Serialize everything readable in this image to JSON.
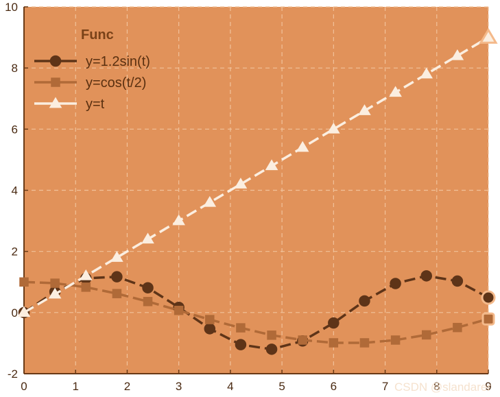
{
  "watermark": "CSDN @slandarer",
  "colors": {
    "background": "#e1925a",
    "grid": "#f1c29b",
    "axis": "#6a3a16"
  },
  "chart_data": {
    "type": "line",
    "xlim": [
      0,
      9
    ],
    "ylim": [
      -2,
      10
    ],
    "xticks": [
      0,
      1,
      2,
      3,
      4,
      5,
      6,
      7,
      8,
      9
    ],
    "yticks": [
      -2,
      0,
      2,
      4,
      6,
      8,
      10
    ],
    "grid": true,
    "legend": {
      "title": "Func",
      "placement": "top-left"
    },
    "x": [
      0,
      0.6,
      1.2,
      1.8,
      2.4,
      3.0,
      3.6,
      4.2,
      4.8,
      5.4,
      6.0,
      6.6,
      7.2,
      7.8,
      8.4,
      9.0
    ],
    "series": [
      {
        "name": "y=1.2sin(t)",
        "marker": "circle",
        "color": "#5e3418",
        "values": [
          0,
          0.68,
          1.12,
          1.17,
          0.81,
          0.17,
          -0.53,
          -1.05,
          -1.2,
          -0.93,
          -0.34,
          0.38,
          0.95,
          1.2,
          1.03,
          0.49
        ]
      },
      {
        "name": "y=cos(t/2)",
        "marker": "square",
        "color": "#b06a38",
        "values": [
          1.0,
          0.96,
          0.83,
          0.62,
          0.36,
          0.07,
          -0.23,
          -0.5,
          -0.74,
          -0.9,
          -0.99,
          -0.99,
          -0.9,
          -0.73,
          -0.49,
          -0.21
        ]
      },
      {
        "name": "y=t",
        "marker": "triangle",
        "color": "#fbeee0",
        "values": [
          0,
          0.6,
          1.2,
          1.8,
          2.4,
          3.0,
          3.6,
          4.2,
          4.8,
          5.4,
          6.0,
          6.6,
          7.2,
          7.8,
          8.4,
          9.0
        ]
      }
    ]
  }
}
